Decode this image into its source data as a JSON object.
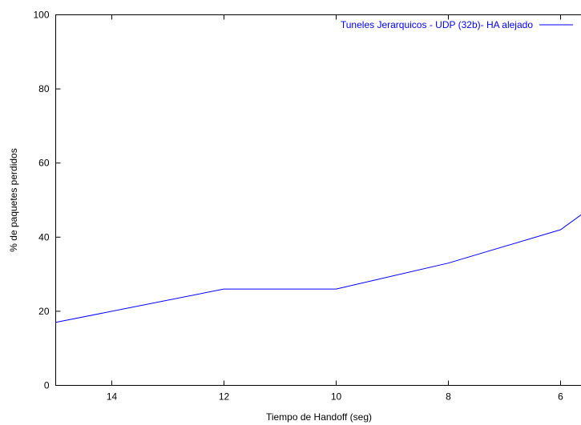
{
  "chart_data": {
    "type": "line",
    "xlabel": "Tiempo de Handoff (seg)",
    "ylabel": "% de paquetes perdidos",
    "xlim": [
      15,
      5
    ],
    "ylim": [
      0,
      100
    ],
    "x_reversed": true,
    "x_ticks": [
      14,
      12,
      10,
      8,
      6
    ],
    "y_ticks": [
      0,
      20,
      40,
      60,
      80,
      100
    ],
    "x_tick_labels": [
      "14",
      "12",
      "10",
      "8",
      "6"
    ],
    "y_tick_labels": [
      "0",
      "20",
      "40",
      "60",
      "80",
      "100"
    ],
    "grid": false,
    "legend_position": "top-right",
    "series": [
      {
        "name": "Tuneles Jerarquicos - UDP (32b)- HA alejado",
        "color": "#0000ff",
        "x": [
          15,
          12,
          10,
          8,
          6,
          5
        ],
        "y": [
          17,
          26,
          26,
          33,
          42,
          53
        ]
      }
    ]
  }
}
